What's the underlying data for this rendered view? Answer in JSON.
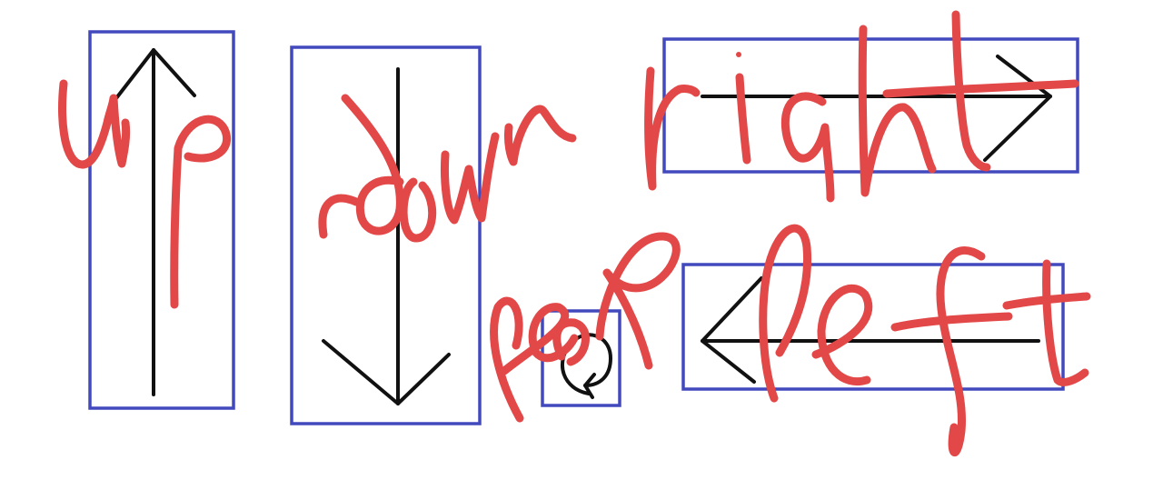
{
  "colors": {
    "background": "#ffffff",
    "box": "#4249bd",
    "arrow": "#111111",
    "handwriting": "#e34848"
  },
  "labels": {
    "up": "up",
    "down": "down",
    "right": "right",
    "left": "left",
    "loop": "loop"
  },
  "icons": [
    "arrow-up-icon",
    "arrow-down-icon",
    "arrow-right-icon",
    "arrow-left-icon",
    "loop-icon"
  ]
}
